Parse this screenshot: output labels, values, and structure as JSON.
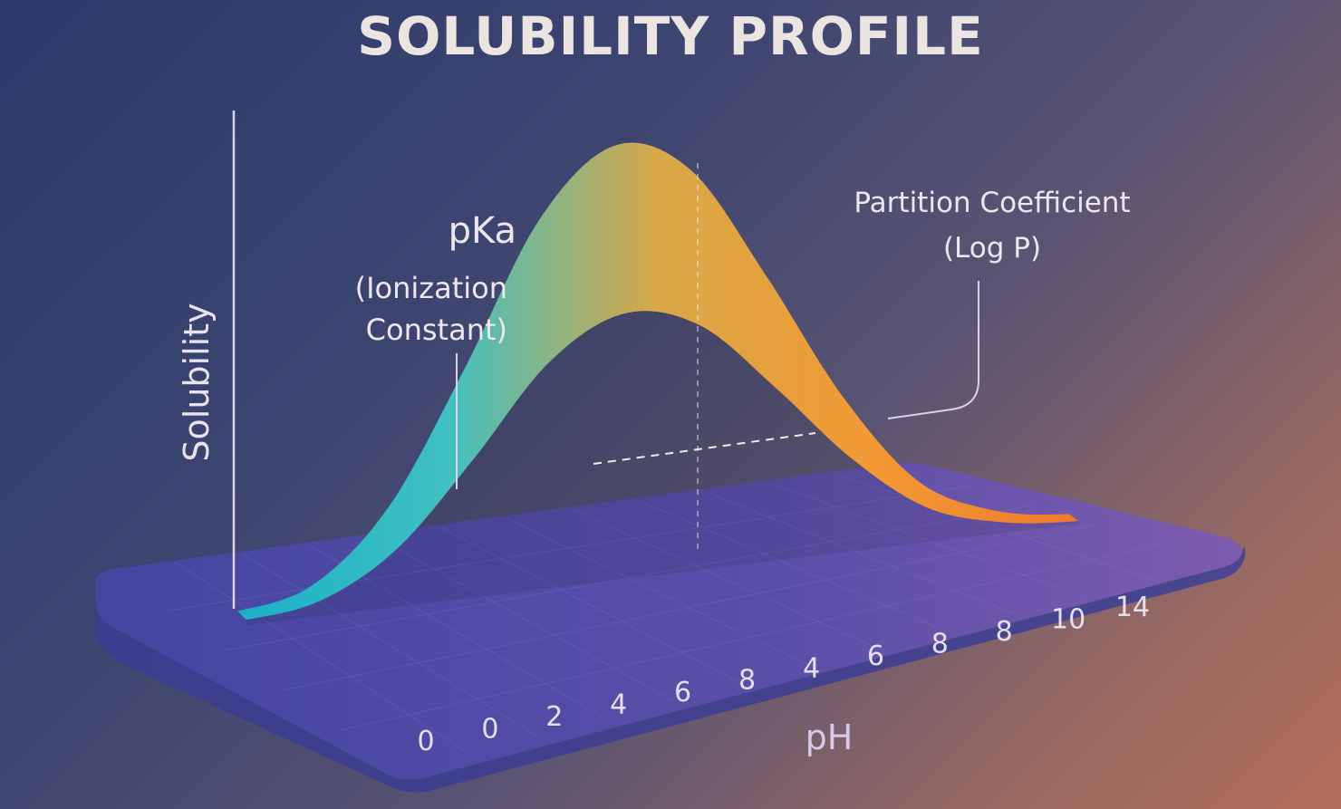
{
  "title": "SOLUBILITY PROFILE",
  "annotations": {
    "pka_title": "pKa",
    "pka_sub_line1": "(Ionization",
    "pka_sub_line2": "Constant)",
    "logp_title": "Partition Coefficient",
    "logp_sub": "(Log P)"
  },
  "chart_data": {
    "type": "area",
    "title": "SOLUBILITY PROFILE",
    "xlabel": "pH",
    "ylabel": "Solubility",
    "tick_labels": [
      "0",
      "0",
      "2",
      "4",
      "6",
      "8",
      "4",
      "6",
      "8",
      "8",
      "10",
      "14"
    ],
    "series": [
      {
        "x": [
          0,
          1,
          2,
          3,
          4,
          5,
          6,
          7,
          8,
          9,
          10,
          11
        ],
        "values": [
          0.02,
          0.06,
          0.22,
          0.52,
          0.85,
          1.0,
          0.92,
          0.65,
          0.35,
          0.13,
          0.04,
          0.01
        ]
      }
    ],
    "ylim": [
      0,
      1.1
    ],
    "grid": true,
    "legend": "none",
    "gradient_colors": [
      "#1ab0c8",
      "#40c0c0",
      "#d8a848",
      "#f29a35",
      "#f07a2c"
    ]
  }
}
